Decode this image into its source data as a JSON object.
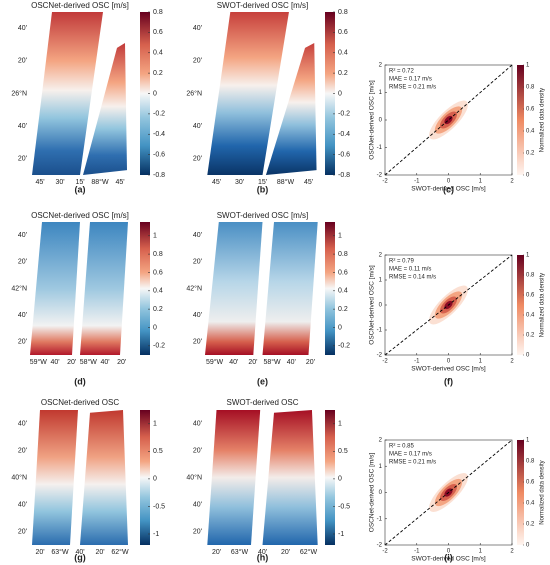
{
  "chart_data": [
    {
      "type": "map",
      "title": "OSCNet-derived OSC [m/s]",
      "panel_label": "(a)",
      "clim": [
        -0.8,
        0.8
      ],
      "cticks": [
        -0.8,
        -0.6,
        -0.4,
        -0.2,
        0,
        0.2,
        0.4,
        0.6,
        0.8
      ],
      "lat_labels": [
        "40'",
        "20'",
        "26°N",
        "40'",
        "20'"
      ],
      "lon_labels": [
        "45'",
        "30'",
        "15'",
        "88°W",
        "45'"
      ]
    },
    {
      "type": "map",
      "title": "SWOT-derived OSC [m/s]",
      "panel_label": "(b)",
      "clim": [
        -0.8,
        0.8
      ],
      "cticks": [
        -0.8,
        -0.6,
        -0.4,
        -0.2,
        0,
        0.2,
        0.4,
        0.6,
        0.8
      ],
      "lat_labels": [
        "40'",
        "20'",
        "26°N",
        "40'",
        "20'"
      ],
      "lon_labels": [
        "45'",
        "30'",
        "15'",
        "88°W",
        "45'"
      ]
    },
    {
      "type": "density-scatter",
      "panel_label": "(c)",
      "xlabel": "SWOT-derived OSC [m/s]",
      "ylabel": "OSCNet-derived OSC [m/s]",
      "annotations": [
        "R² = 0.72",
        "MAE = 0.17 m/s",
        "RMSE = 0.21 m/s"
      ],
      "xlim": [
        -2,
        2
      ],
      "ylim": [
        -2,
        2
      ],
      "xticks": [
        -2,
        -1,
        0,
        1,
        2
      ],
      "yticks": [
        -2,
        -1,
        0,
        1,
        2
      ],
      "colorbar_label": "Normalized data density",
      "clim": [
        0,
        1
      ],
      "cticks": [
        0,
        0.2,
        0.4,
        0.6,
        0.8,
        1
      ]
    },
    {
      "type": "map",
      "title": "OSCNet-derived OSC [m/s]",
      "panel_label": "(d)",
      "clim": [
        -0.3,
        1.15
      ],
      "cticks": [
        -0.2,
        0,
        0.2,
        0.4,
        0.6,
        0.8,
        1
      ],
      "lat_labels": [
        "40'",
        "20'",
        "42°N",
        "40'",
        "20'"
      ],
      "lon_labels": [
        "59°W",
        "40'",
        "20'",
        "58°W",
        "40'",
        "20'"
      ]
    },
    {
      "type": "map",
      "title": "SWOT-derived OSC [m/s]",
      "panel_label": "(e)",
      "clim": [
        -0.3,
        1.15
      ],
      "cticks": [
        -0.2,
        0,
        0.2,
        0.4,
        0.6,
        0.8,
        1
      ],
      "lat_labels": [
        "40'",
        "20'",
        "42°N",
        "40'",
        "20'"
      ],
      "lon_labels": [
        "59°W",
        "40'",
        "20'",
        "58°W",
        "40'",
        "20'"
      ]
    },
    {
      "type": "density-scatter",
      "panel_label": "(f)",
      "xlabel": "SWOT-derived OSC [m/s]",
      "ylabel": "OSCNet-derived OSC [m/s]",
      "annotations": [
        "R² = 0.79",
        "MAE = 0.11 m/s",
        "RMSE = 0.14 m/s"
      ],
      "xlim": [
        -2,
        2
      ],
      "ylim": [
        -2,
        2
      ],
      "xticks": [
        -2,
        -1,
        0,
        1,
        2
      ],
      "yticks": [
        -2,
        -1,
        0,
        1,
        2
      ],
      "colorbar_label": "Normalized data density",
      "clim": [
        0,
        1
      ],
      "cticks": [
        0,
        0.2,
        0.4,
        0.6,
        0.8,
        1
      ]
    },
    {
      "type": "map",
      "title": "OSCNet-derived OSC",
      "panel_label": "(g)",
      "clim": [
        -1.2,
        1.25
      ],
      "cticks": [
        -1,
        -0.5,
        0,
        0.5,
        1
      ],
      "lat_labels": [
        "40'",
        "20'",
        "40°N",
        "40'",
        "20'"
      ],
      "lon_labels": [
        "20'",
        "63°W",
        "40'",
        "20'",
        "62°W"
      ]
    },
    {
      "type": "map",
      "title": "SWOT-derived OSC",
      "panel_label": "(h)",
      "clim": [
        -1.2,
        1.25
      ],
      "cticks": [
        -1,
        -0.5,
        0,
        0.5,
        1
      ],
      "lat_labels": [
        "40'",
        "20'",
        "40°N",
        "40'",
        "20'"
      ],
      "lon_labels": [
        "20'",
        "63°W",
        "40'",
        "20'",
        "62°W"
      ]
    },
    {
      "type": "density-scatter",
      "panel_label": "(i)",
      "xlabel": "SWOT-derived OSC [m/s]",
      "ylabel": "OSCNet-derived OSC [m/s]",
      "annotations": [
        "R² = 0.85",
        "MAE = 0.17 m/s",
        "RMSE = 0.21 m/s"
      ],
      "xlim": [
        -2,
        2
      ],
      "ylim": [
        -2,
        2
      ],
      "xticks": [
        -2,
        -1,
        0,
        1,
        2
      ],
      "yticks": [
        -2,
        -1,
        0,
        1,
        2
      ],
      "colorbar_label": "Normalized data density",
      "clim": [
        0,
        1
      ],
      "cticks": [
        0,
        0.2,
        0.4,
        0.6,
        0.8,
        1
      ]
    }
  ]
}
